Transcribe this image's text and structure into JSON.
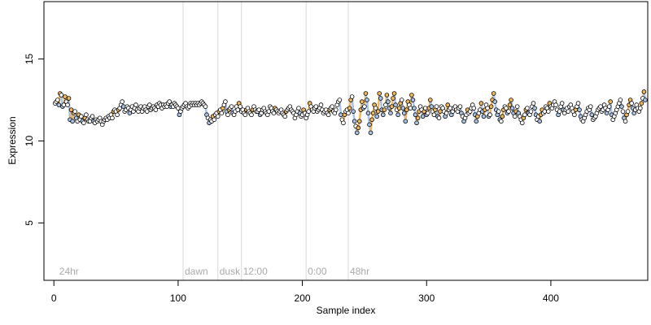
{
  "chart_data": {
    "type": "scatter",
    "title": "",
    "xlabel": "Sample index",
    "ylabel": "Expression",
    "xlim": [
      -8,
      478
    ],
    "ylim": [
      1.5,
      18.5
    ],
    "x_ticks": [
      0,
      100,
      200,
      300,
      400
    ],
    "y_ticks": [
      5,
      10,
      15
    ],
    "grid": false,
    "legend": "none",
    "colors": {
      "point_outline": "#000000",
      "up": "#f0b65a",
      "down": "#a9c3e6",
      "flat": "#ffffff",
      "segment_up": "#f0b65a",
      "segment_down": "#a9c3e6",
      "phase_line": "#d9d9d9",
      "phase_text": "#a9a9a9"
    },
    "phase_markers": [
      {
        "x": 3,
        "label": "24hr",
        "line": false
      },
      {
        "x": 104,
        "label": "dawn",
        "line": true
      },
      {
        "x": 132,
        "label": "dusk",
        "line": true
      },
      {
        "x": 151,
        "label": "12:00",
        "line": true
      },
      {
        "x": 203,
        "label": "0:00",
        "line": true
      },
      {
        "x": 237,
        "label": "48hr",
        "line": true
      }
    ],
    "series": [
      {
        "x_start": 1,
        "values": [
          12.3,
          12.4,
          12.5,
          12.2,
          12.9,
          12.8,
          12.1,
          12.2,
          12.7,
          12.4,
          12.2,
          12.6,
          11.3,
          11.9,
          11.2,
          11.7,
          11.8,
          11.4,
          11.2,
          11.6,
          11.3,
          11.5,
          11.2,
          11.1,
          11.4,
          11.6,
          11.3,
          11.2,
          11.2,
          11.4,
          11.5,
          11.2,
          11.1,
          11.3,
          11.2,
          11.3,
          11.4,
          11.2,
          11.0,
          11.2,
          11.3,
          11.4,
          11.3,
          11.5,
          11.4,
          11.6,
          11.4,
          11.8,
          11.9,
          11.8,
          11.6,
          11.9,
          12.0,
          12.2,
          12.4,
          12.1,
          11.8,
          11.9,
          12.1,
          12.0,
          11.7,
          11.9,
          12.1,
          11.8,
          12.0,
          12.2,
          11.9,
          11.8,
          12.0,
          12.1,
          11.8,
          12.0,
          12.1,
          11.9,
          11.8,
          12.1,
          12.2,
          11.9,
          12.0,
          12.1,
          12.0,
          11.9,
          12.2,
          12.1,
          12.3,
          12.2,
          12.0,
          12.2,
          12.1,
          12.2,
          12.1,
          12.3,
          12.4,
          12.1,
          12.2,
          12.1,
          12.3,
          12.2,
          12.1,
          12.0,
          11.6,
          11.8,
          12.0,
          12.1,
          12.2,
          12.3,
          12.1,
          12.0,
          12.1,
          12.3,
          12.2,
          12.3,
          12.2,
          12.3,
          12.2,
          12.3,
          12.2,
          12.3,
          12.4,
          12.3,
          12.2,
          12.1,
          11.6,
          11.4,
          11.1,
          11.3,
          11.2,
          11.5,
          11.3,
          11.6,
          11.7,
          11.5,
          11.8,
          11.9,
          11.7,
          12.0,
          12.2,
          12.4,
          11.8,
          11.6,
          11.9,
          12.0,
          12.1,
          11.7,
          11.6,
          11.8,
          12.1,
          11.9,
          12.3,
          12.1,
          11.8,
          11.9,
          11.7,
          11.6,
          11.9,
          12.0,
          11.8,
          11.7,
          11.6,
          11.9,
          12.1,
          11.9,
          11.8,
          11.8,
          11.9,
          11.6,
          11.7,
          11.9,
          12.0,
          11.8,
          11.7,
          11.6,
          11.8,
          12.1,
          12.0,
          11.8,
          11.7,
          12.0,
          11.9,
          11.8,
          11.7,
          11.8,
          11.9,
          11.7,
          11.6,
          11.5,
          11.8,
          11.9,
          12.0,
          12.1,
          11.9,
          11.8,
          11.7,
          11.4,
          11.6,
          11.8,
          12.0,
          11.7,
          11.5,
          11.6,
          11.9,
          11.7,
          11.4,
          11.6,
          11.8,
          12.3,
          12.1,
          11.9,
          11.8,
          12.0,
          12.1,
          11.8,
          11.9,
          12.0,
          12.2,
          11.9,
          11.7,
          11.8,
          11.9,
          11.7,
          11.6,
          11.9,
          12.0,
          12.1,
          11.8,
          11.7,
          11.9,
          12.2,
          12.4,
          12.5,
          11.6,
          11.3,
          11.1,
          11.6,
          11.8,
          11.9,
          11.7,
          12.0,
          12.5,
          12.7,
          11.8,
          11.2,
          10.9,
          10.5,
          10.8,
          11.2,
          11.9,
          12.4,
          12.0,
          12.1,
          12.9,
          12.5,
          11.7,
          11.0,
          10.5,
          11.3,
          11.7,
          12.2,
          12.0,
          11.5,
          11.8,
          12.9,
          12.6,
          11.9,
          11.6,
          11.9,
          12.2,
          12.8,
          12.4,
          12.0,
          11.7,
          12.1,
          12.6,
          12.9,
          12.2,
          11.9,
          11.6,
          12.0,
          12.3,
          12.5,
          12.0,
          11.7,
          11.2,
          11.9,
          12.4,
          12.2,
          12.0,
          12.8,
          12.5,
          12.0,
          11.6,
          11.1,
          11.4,
          11.8,
          12.1,
          11.9,
          11.5,
          11.8,
          12.0,
          11.6,
          11.7,
          12.0,
          12.5,
          12.1,
          11.8,
          11.6,
          11.9,
          12.1,
          11.5,
          11.4,
          11.8,
          12.1,
          12.0,
          11.8,
          11.5,
          11.7,
          12.2,
          11.9,
          12.0,
          11.6,
          11.8,
          12.0,
          12.1,
          11.9,
          11.8,
          12.0,
          12.1,
          11.7,
          11.5,
          11.2,
          11.4,
          11.6,
          11.9,
          11.7,
          11.8,
          12.0,
          12.2,
          12.0,
          11.6,
          11.2,
          11.5,
          11.7,
          11.9,
          12.3,
          11.8,
          11.5,
          11.9,
          12.2,
          12.0,
          11.5,
          11.6,
          12.1,
          12.5,
          12.9,
          12.4,
          11.9,
          11.6,
          11.8,
          11.3,
          11.2,
          11.5,
          11.9,
          12.1,
          12.0,
          11.7,
          11.8,
          12.2,
          12.5,
          12.0,
          11.7,
          11.5,
          11.8,
          12.1,
          11.7,
          11.5,
          11.3,
          11.1,
          11.4,
          11.6,
          11.9,
          12.0,
          11.7,
          11.6,
          11.8,
          12.1,
          12.3,
          12.0,
          11.6,
          11.3,
          11.5,
          11.2,
          11.6,
          11.9,
          11.7,
          11.8,
          12.1,
          12.0,
          11.8,
          12.3,
          12.1,
          12.0,
          12.2,
          12.4,
          12.2,
          11.9,
          11.6,
          11.8,
          12.1,
          12.3,
          11.9,
          11.7,
          11.9,
          12.0,
          11.8,
          12.1,
          12.2,
          12.0,
          11.8,
          11.6,
          11.9,
          12.1,
          12.3,
          11.9,
          11.5,
          11.3,
          11.2,
          11.4,
          11.6,
          11.8,
          12.0,
          11.9,
          12.1,
          11.6,
          11.3,
          11.4,
          11.5,
          11.7,
          11.9,
          12.0,
          12.1,
          11.8,
          11.9,
          12.2,
          12.0,
          11.7,
          11.9,
          12.1,
          12.4,
          11.6,
          11.3,
          11.5,
          11.7,
          11.9,
          12.1,
          12.3,
          12.5,
          12.1,
          11.8,
          11.4,
          11.2,
          11.6,
          11.8,
          12.2,
          12.5,
          12.3,
          12.0,
          11.7,
          11.9,
          12.2,
          12.0,
          11.8,
          12.0,
          12.3,
          12.6,
          13.0,
          12.5
        ]
      }
    ]
  }
}
